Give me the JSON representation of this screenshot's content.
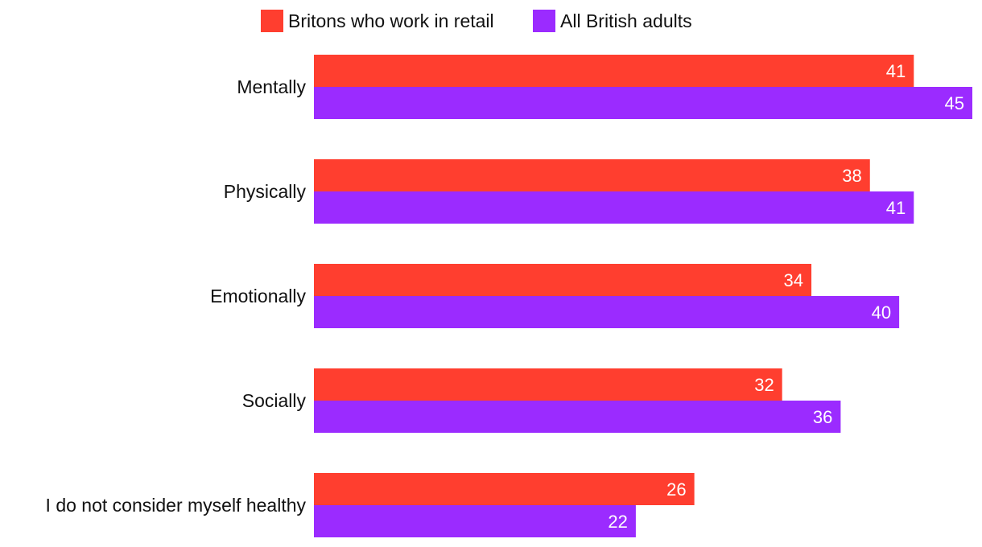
{
  "chart_data": {
    "type": "bar",
    "orientation": "horizontal",
    "title": "",
    "xlabel": "",
    "ylabel": "",
    "xlim": [
      0,
      45
    ],
    "grid": false,
    "legend_position": "top-center",
    "categories": [
      "Mentally",
      "Physically",
      "Emotionally",
      "Socially",
      "I do not consider myself healthy"
    ],
    "series": [
      {
        "name": "Britons who work in retail",
        "color": "#ff3e2f",
        "values": [
          41,
          38,
          34,
          32,
          26
        ]
      },
      {
        "name": "All British adults",
        "color": "#9b2bff",
        "values": [
          45,
          41,
          40,
          36,
          22
        ]
      }
    ]
  }
}
